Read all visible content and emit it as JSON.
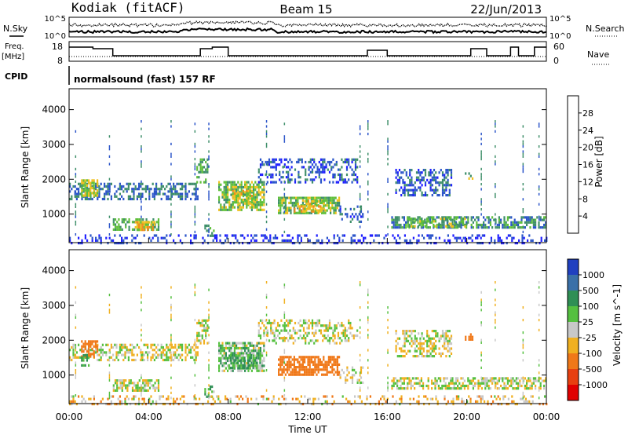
{
  "header": {
    "title_left": "Kodiak (fitACF)",
    "title_center": "Beam 15",
    "title_right": "22/Jun/2013"
  },
  "noise_panel": {
    "left_label": "N.Sky",
    "right_label": "N.Search",
    "left_ticks": [
      "10^5",
      "10^0"
    ],
    "right_ticks": [
      "10^5",
      "10^0"
    ]
  },
  "freq_panel": {
    "left_label_1": "Freq.",
    "left_label_2": "[MHz]",
    "right_label": "Nave",
    "left_ticks": [
      "18",
      "8"
    ],
    "right_ticks": [
      "60",
      "0"
    ]
  },
  "cpid": {
    "label": "CPID",
    "text": "normalsound (fast) 157 RF"
  },
  "x_axis": {
    "ticks": [
      "00:00",
      "04:00",
      "08:00",
      "12:00",
      "16:00",
      "20:00",
      "00:00"
    ],
    "label": "Time UT"
  },
  "range_axis": {
    "label": "Slant Range [km]",
    "ticks": [
      "1000",
      "2000",
      "3000",
      "4000"
    ]
  },
  "power_colorbar": {
    "label": "Power [dB]",
    "ticks": [
      "4",
      "8",
      "12",
      "16",
      "20",
      "24",
      "28"
    ],
    "colors": [
      "#1f1fff",
      "#2b55c9",
      "#3f8f6a",
      "#5fbf3a",
      "#f0c020",
      "#f08a1e",
      "#e84a18",
      "#e00000"
    ]
  },
  "velocity_colorbar": {
    "label": "Velocity [m s^-1]",
    "ticks": [
      "1000",
      "500",
      "100",
      "25",
      "-25",
      "-100",
      "-500",
      "-1000"
    ],
    "colors": [
      "#2040c0",
      "#3a70a8",
      "#2f8f55",
      "#55c040",
      "#c8c8c8",
      "#f0b020",
      "#f07818",
      "#e84010",
      "#e00000"
    ]
  },
  "chart_data": [
    {
      "type": "heatmap",
      "title": "Power",
      "xlabel": "Time UT",
      "ylabel": "Slant Range [km]",
      "xlim": [
        0,
        24
      ],
      "ylim": [
        180,
        4600
      ],
      "colorbar_label": "Power [dB]",
      "colorbar_range": [
        0,
        30
      ],
      "patches": [
        {
          "t0": 0.0,
          "t1": 6.5,
          "r0": 1450,
          "r1": 1900,
          "v": 8,
          "d": 0.55
        },
        {
          "t0": 0.6,
          "t1": 1.4,
          "r0": 1500,
          "r1": 2000,
          "v": 16,
          "d": 0.7
        },
        {
          "t0": 2.2,
          "t1": 4.5,
          "r0": 560,
          "r1": 880,
          "v": 12,
          "d": 0.6
        },
        {
          "t0": 3.3,
          "t1": 4.3,
          "r0": 560,
          "r1": 800,
          "v": 18,
          "d": 0.7
        },
        {
          "t0": 6.4,
          "t1": 7.0,
          "r0": 1900,
          "r1": 2600,
          "v": 12,
          "d": 0.55
        },
        {
          "t0": 6.8,
          "t1": 7.3,
          "r0": 400,
          "r1": 700,
          "v": 12,
          "d": 0.45
        },
        {
          "t0": 7.5,
          "t1": 9.8,
          "r0": 1100,
          "r1": 1950,
          "v": 14,
          "d": 0.75
        },
        {
          "t0": 8.2,
          "t1": 9.3,
          "r0": 1300,
          "r1": 1700,
          "v": 18,
          "d": 0.55
        },
        {
          "t0": 9.5,
          "t1": 14.5,
          "r0": 1950,
          "r1": 2600,
          "v": 6,
          "d": 0.4
        },
        {
          "t0": 10.5,
          "t1": 13.6,
          "r0": 1000,
          "r1": 1500,
          "v": 14,
          "d": 0.72
        },
        {
          "t0": 11.3,
          "t1": 12.8,
          "r0": 1050,
          "r1": 1400,
          "v": 18,
          "d": 0.55
        },
        {
          "t0": 13.6,
          "t1": 14.8,
          "r0": 800,
          "r1": 1250,
          "v": 6,
          "d": 0.35
        },
        {
          "t0": 16.4,
          "t1": 19.2,
          "r0": 1550,
          "r1": 2300,
          "v": 6,
          "d": 0.45
        },
        {
          "t0": 16.2,
          "t1": 24.0,
          "r0": 620,
          "r1": 940,
          "v": 10,
          "d": 0.6
        },
        {
          "t0": 17.0,
          "t1": 20.0,
          "r0": 620,
          "r1": 900,
          "v": 14,
          "d": 0.45
        },
        {
          "t0": 19.9,
          "t1": 20.3,
          "r0": 2000,
          "r1": 2200,
          "v": 14,
          "d": 0.6
        },
        {
          "t0": 0.0,
          "t1": 24.0,
          "r0": 180,
          "r1": 420,
          "v": 4,
          "d": 0.3
        }
      ],
      "streaks": [
        {
          "t": 0.3
        },
        {
          "t": 2.0
        },
        {
          "t": 3.6
        },
        {
          "t": 5.1
        },
        {
          "t": 6.3
        },
        {
          "t": 7.0
        },
        {
          "t": 9.9
        },
        {
          "t": 10.8
        },
        {
          "t": 14.6
        },
        {
          "t": 15.0
        },
        {
          "t": 16.0
        },
        {
          "t": 20.7
        },
        {
          "t": 21.4
        },
        {
          "t": 22.8
        },
        {
          "t": 23.6
        }
      ]
    },
    {
      "type": "heatmap",
      "title": "Velocity",
      "xlabel": "Time UT",
      "ylabel": "Slant Range [km]",
      "xlim": [
        0,
        24
      ],
      "ylim": [
        180,
        4600
      ],
      "colorbar_label": "Velocity [m s^-1]",
      "colorbar_range": [
        -1000,
        1000
      ],
      "patches": [
        {
          "t0": 0.0,
          "t1": 6.5,
          "r0": 1450,
          "r1": 1900,
          "v": 0,
          "d": 0.5
        },
        {
          "t0": 0.6,
          "t1": 1.4,
          "r0": 1500,
          "r1": 2000,
          "v": -300,
          "d": 0.6
        },
        {
          "t0": 0.6,
          "t1": 1.0,
          "r0": 1300,
          "r1": 1600,
          "v": 150,
          "d": 0.5
        },
        {
          "t0": 2.2,
          "t1": 4.5,
          "r0": 560,
          "r1": 880,
          "v": 0,
          "d": 0.6
        },
        {
          "t0": 6.4,
          "t1": 7.0,
          "r0": 1900,
          "r1": 2600,
          "v": 0,
          "d": 0.55
        },
        {
          "t0": 6.8,
          "t1": 7.3,
          "r0": 400,
          "r1": 700,
          "v": 60,
          "d": 0.45
        },
        {
          "t0": 7.5,
          "t1": 9.8,
          "r0": 1100,
          "r1": 1950,
          "v": 60,
          "d": 0.75
        },
        {
          "t0": 8.0,
          "t1": 9.6,
          "r0": 1200,
          "r1": 1600,
          "v": 150,
          "d": 0.5
        },
        {
          "t0": 9.5,
          "t1": 14.5,
          "r0": 1950,
          "r1": 2600,
          "v": 0,
          "d": 0.4
        },
        {
          "t0": 10.5,
          "t1": 13.6,
          "r0": 1000,
          "r1": 1550,
          "v": -300,
          "d": 0.75
        },
        {
          "t0": 13.6,
          "t1": 14.8,
          "r0": 800,
          "r1": 1250,
          "v": 0,
          "d": 0.3
        },
        {
          "t0": 16.4,
          "t1": 19.2,
          "r0": 1550,
          "r1": 2300,
          "v": 0,
          "d": 0.45
        },
        {
          "t0": 16.2,
          "t1": 24.0,
          "r0": 620,
          "r1": 940,
          "v": 0,
          "d": 0.6
        },
        {
          "t0": 19.9,
          "t1": 20.3,
          "r0": 2000,
          "r1": 2200,
          "v": -300,
          "d": 0.6
        },
        {
          "t0": 0.0,
          "t1": 24.0,
          "r0": 180,
          "r1": 420,
          "v": -60,
          "d": 0.25
        }
      ],
      "streaks": [
        {
          "t": 0.3
        },
        {
          "t": 2.0
        },
        {
          "t": 3.6
        },
        {
          "t": 5.1
        },
        {
          "t": 6.3
        },
        {
          "t": 7.0
        },
        {
          "t": 9.9
        },
        {
          "t": 10.8
        },
        {
          "t": 14.6
        },
        {
          "t": 15.0
        },
        {
          "t": 16.0
        },
        {
          "t": 20.7
        },
        {
          "t": 21.4
        },
        {
          "t": 22.8
        },
        {
          "t": 23.6
        }
      ]
    }
  ]
}
